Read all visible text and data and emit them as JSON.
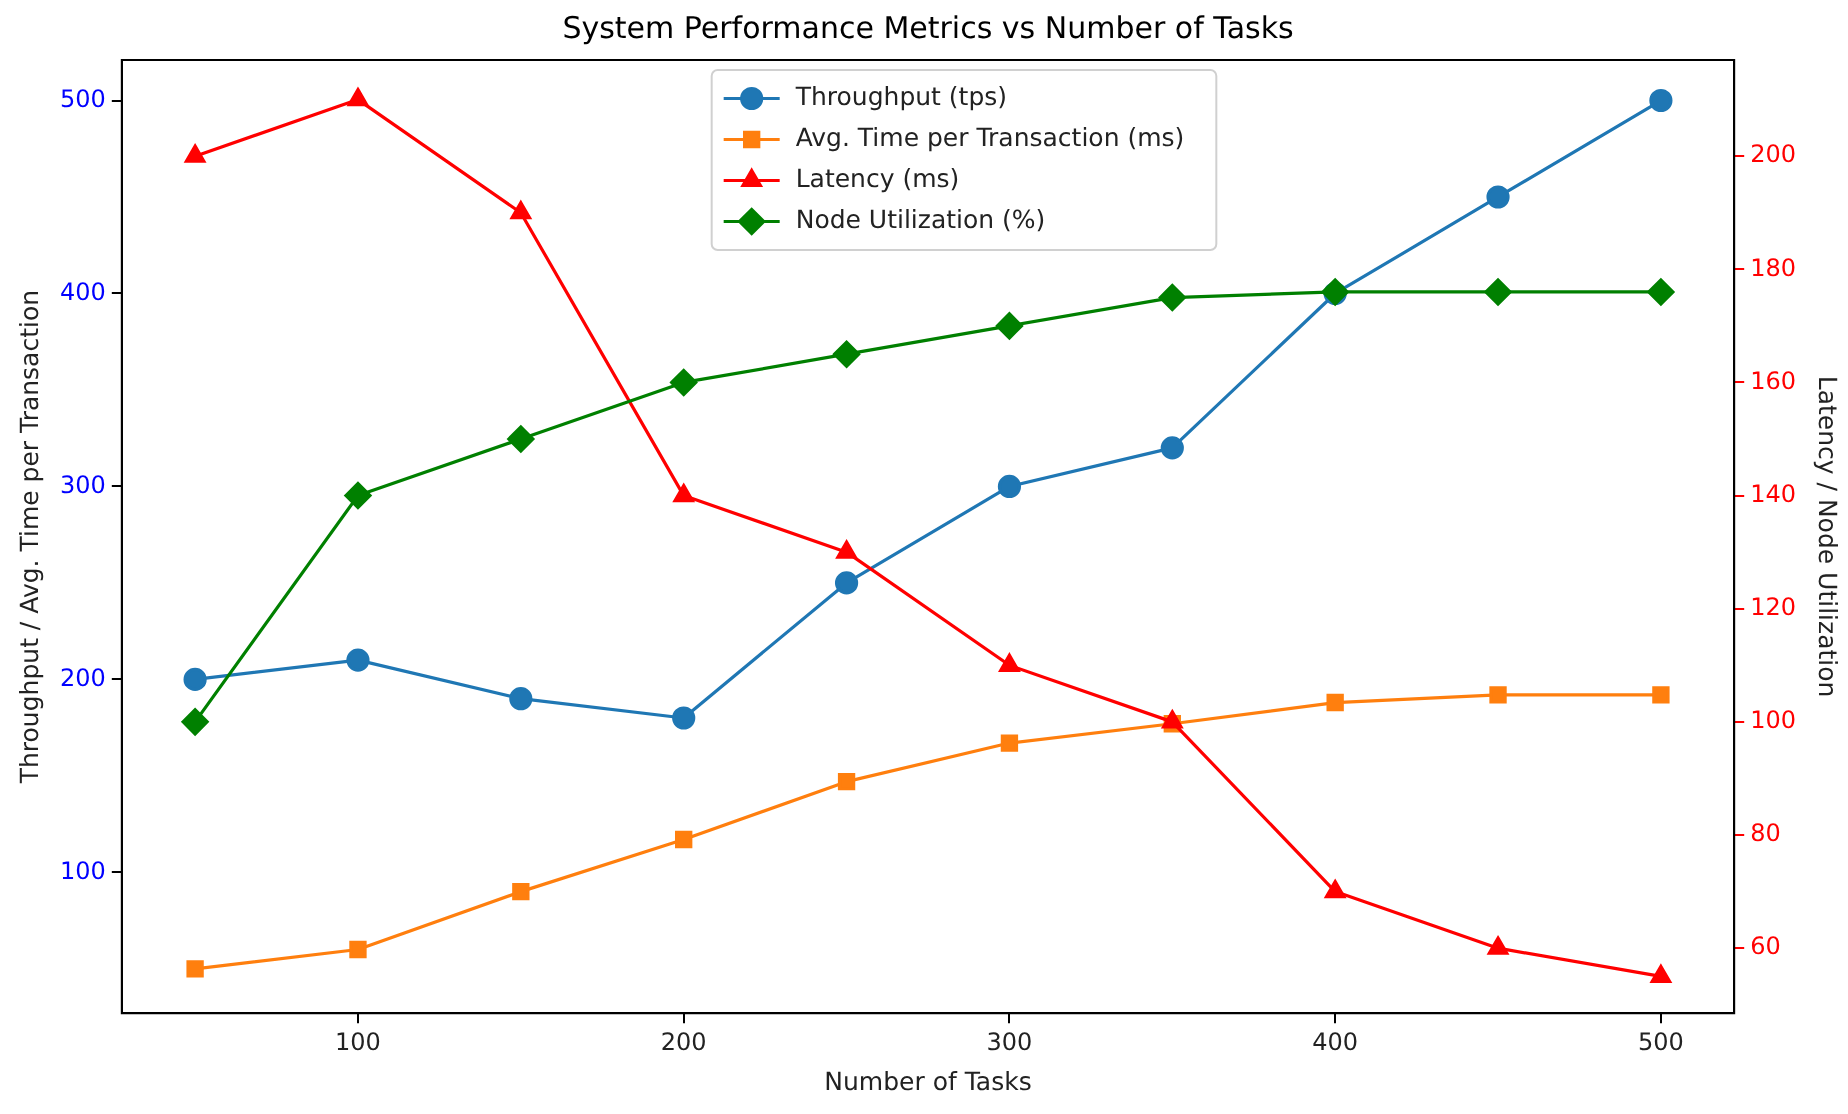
{
  "chart_data": {
    "type": "line",
    "title": "System Performance Metrics vs Number of Tasks",
    "xlabel": "Number of Tasks",
    "ylabel": "Throughput / Avg. Time per Transaction",
    "y2label": "Latency / Node Utilization",
    "x": [
      50,
      100,
      150,
      200,
      250,
      300,
      350,
      400,
      450,
      500
    ],
    "xlim": [
      27.5,
      522.5
    ],
    "xticks": [
      100,
      200,
      300,
      400,
      500
    ],
    "ylim": [
      27,
      521
    ],
    "yticks": [
      100,
      200,
      300,
      400,
      500
    ],
    "y2lim": [
      48.5,
      217
    ],
    "y2ticks": [
      60,
      80,
      100,
      120,
      140,
      160,
      180,
      200
    ],
    "grid": false,
    "legend": "top",
    "line_style": "solid",
    "series": [
      {
        "name": "Throughput (tps)",
        "color": "#1f77b4",
        "marker": "circle",
        "values": [
          200,
          210,
          190,
          180,
          250,
          300,
          320,
          400,
          450,
          500
        ]
      },
      {
        "name": "Avg. Time per Transaction (ms)",
        "color": "#ff7f0e",
        "marker": "square",
        "values": [
          50,
          60,
          90,
          117,
          147,
          167,
          177,
          188,
          192,
          192
        ]
      },
      {
        "name": "Latency (ms)",
        "color": "#ff0000",
        "marker": "triangle",
        "axis": "y2",
        "values": [
          200,
          210,
          190,
          140,
          130,
          110,
          100,
          70,
          60,
          55
        ]
      },
      {
        "name": "Node Utilization (%)",
        "color": "#008000",
        "marker": "diamond",
        "axis": "y2",
        "values": [
          100,
          140,
          150,
          160,
          165,
          170,
          175,
          176,
          176,
          176
        ]
      }
    ]
  }
}
